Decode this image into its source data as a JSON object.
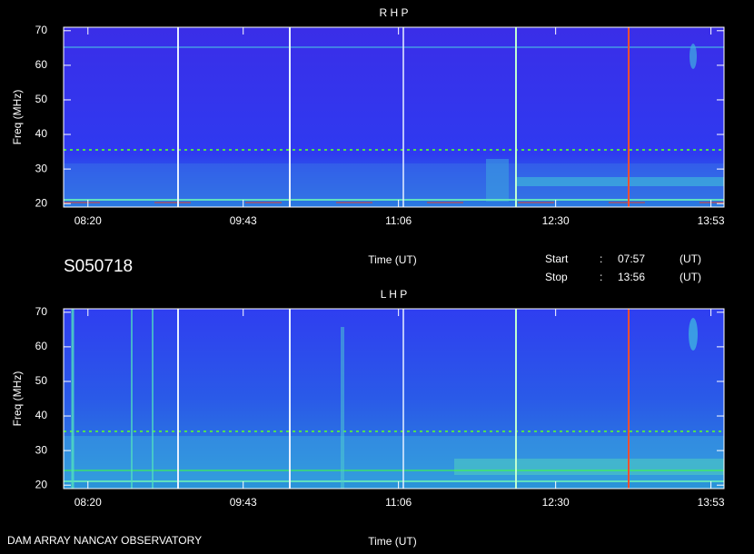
{
  "chart_data": [
    {
      "type": "spectrogram",
      "title": "R H P",
      "y_label": "Freq (MHz)",
      "x_label": "Time (UT)",
      "ylim": [
        19,
        71
      ],
      "yticks": [
        20,
        30,
        40,
        50,
        60,
        70
      ],
      "xlim": [
        "08:07",
        "14:00"
      ],
      "xticks": [
        "08:20",
        "09:43",
        "11:06",
        "12:30",
        "13:53"
      ]
    },
    {
      "type": "spectrogram",
      "title": "L H P",
      "y_label": "Freq (MHz)",
      "x_label": "Time (UT)",
      "ylim": [
        19,
        71
      ],
      "yticks": [
        20,
        30,
        40,
        50,
        60,
        70
      ],
      "xlim": [
        "08:07",
        "14:00"
      ],
      "xticks": [
        "08:20",
        "09:43",
        "11:06",
        "12:30",
        "13:53"
      ]
    }
  ],
  "session": "S050718",
  "start": {
    "label": "Start",
    "sep": ":",
    "time": "07:57",
    "unit": "(UT)"
  },
  "stop": {
    "label": "Stop",
    "sep": ":",
    "time": "13:56",
    "unit": "(UT)"
  },
  "footer": "DAM ARRAY  NANCAY OBSERVATORY"
}
